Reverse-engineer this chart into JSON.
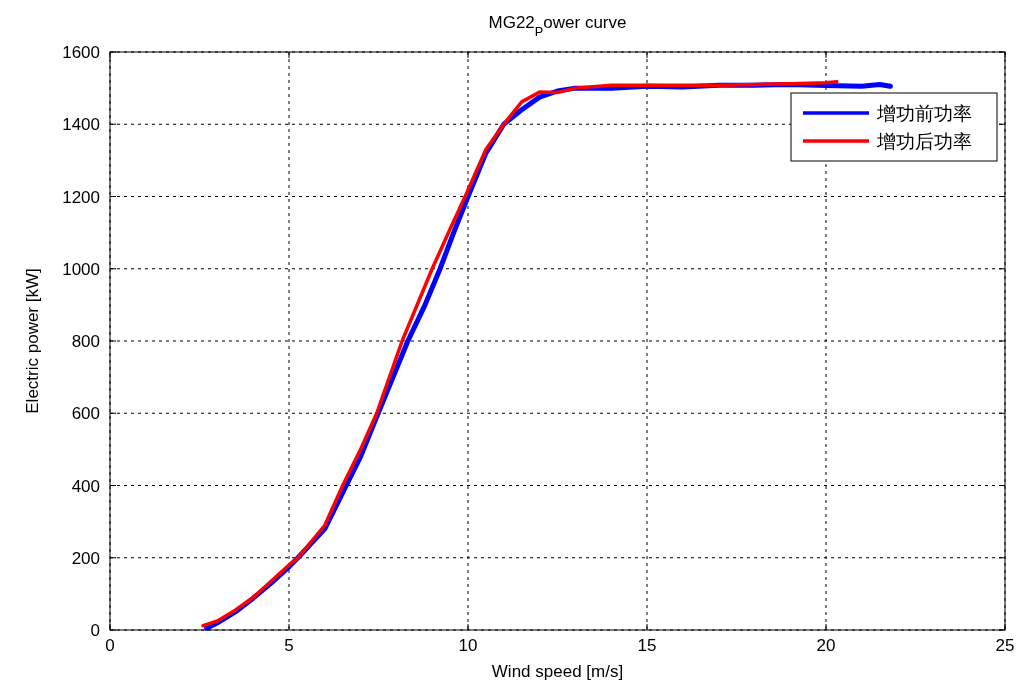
{
  "chart_data": {
    "type": "line",
    "title": "MG22$_{P}$ower curve",
    "xlabel": "Wind speed [m/s]",
    "ylabel": "Electric power [kW]",
    "xlim": [
      0,
      25
    ],
    "xticks": [
      0,
      5,
      10,
      15,
      20,
      25
    ],
    "ylim": [
      0,
      1600
    ],
    "yticks": [
      0,
      200,
      400,
      600,
      800,
      1000,
      1200,
      1400,
      1600
    ],
    "grid": true,
    "legend": "top right",
    "line_style": "solid",
    "marker": "none",
    "series": [
      {
        "name": "增功前功率",
        "color": "#0000ff",
        "x": [
          2.7,
          3,
          3.5,
          4,
          4.5,
          5,
          5.25,
          6,
          6.6,
          7,
          7.45,
          8.32,
          8.8,
          9.22,
          9.6,
          10,
          10.5,
          11,
          11.5,
          12,
          12.5,
          13,
          14,
          15,
          16,
          17,
          18,
          19,
          20,
          21,
          21.5,
          21.8
        ],
        "values": [
          5,
          20,
          50,
          88,
          130,
          175,
          200,
          280,
          400,
          480,
          590,
          800,
          900,
          1000,
          1100,
          1200,
          1320,
          1400,
          1440,
          1475,
          1492,
          1500,
          1500,
          1505,
          1503,
          1508,
          1508,
          1510,
          1507,
          1505,
          1510,
          1505
        ]
      },
      {
        "name": "增功后功率",
        "color": "#ff0000",
        "x": [
          2.6,
          3,
          3.5,
          4,
          4.5,
          5,
          5.25,
          6,
          6.5,
          7,
          7.45,
          8.16,
          9,
          9.5,
          9.92,
          10.5,
          11,
          11.5,
          12,
          12.5,
          13,
          14,
          15,
          16,
          17,
          18,
          19,
          20,
          20.3
        ],
        "values": [
          12,
          25,
          55,
          90,
          135,
          180,
          200,
          290,
          400,
          500,
          600,
          800,
          1000,
          1110,
          1200,
          1330,
          1400,
          1462,
          1489,
          1488,
          1500,
          1508,
          1508,
          1508,
          1508,
          1510,
          1512,
          1515,
          1518
        ]
      }
    ]
  }
}
